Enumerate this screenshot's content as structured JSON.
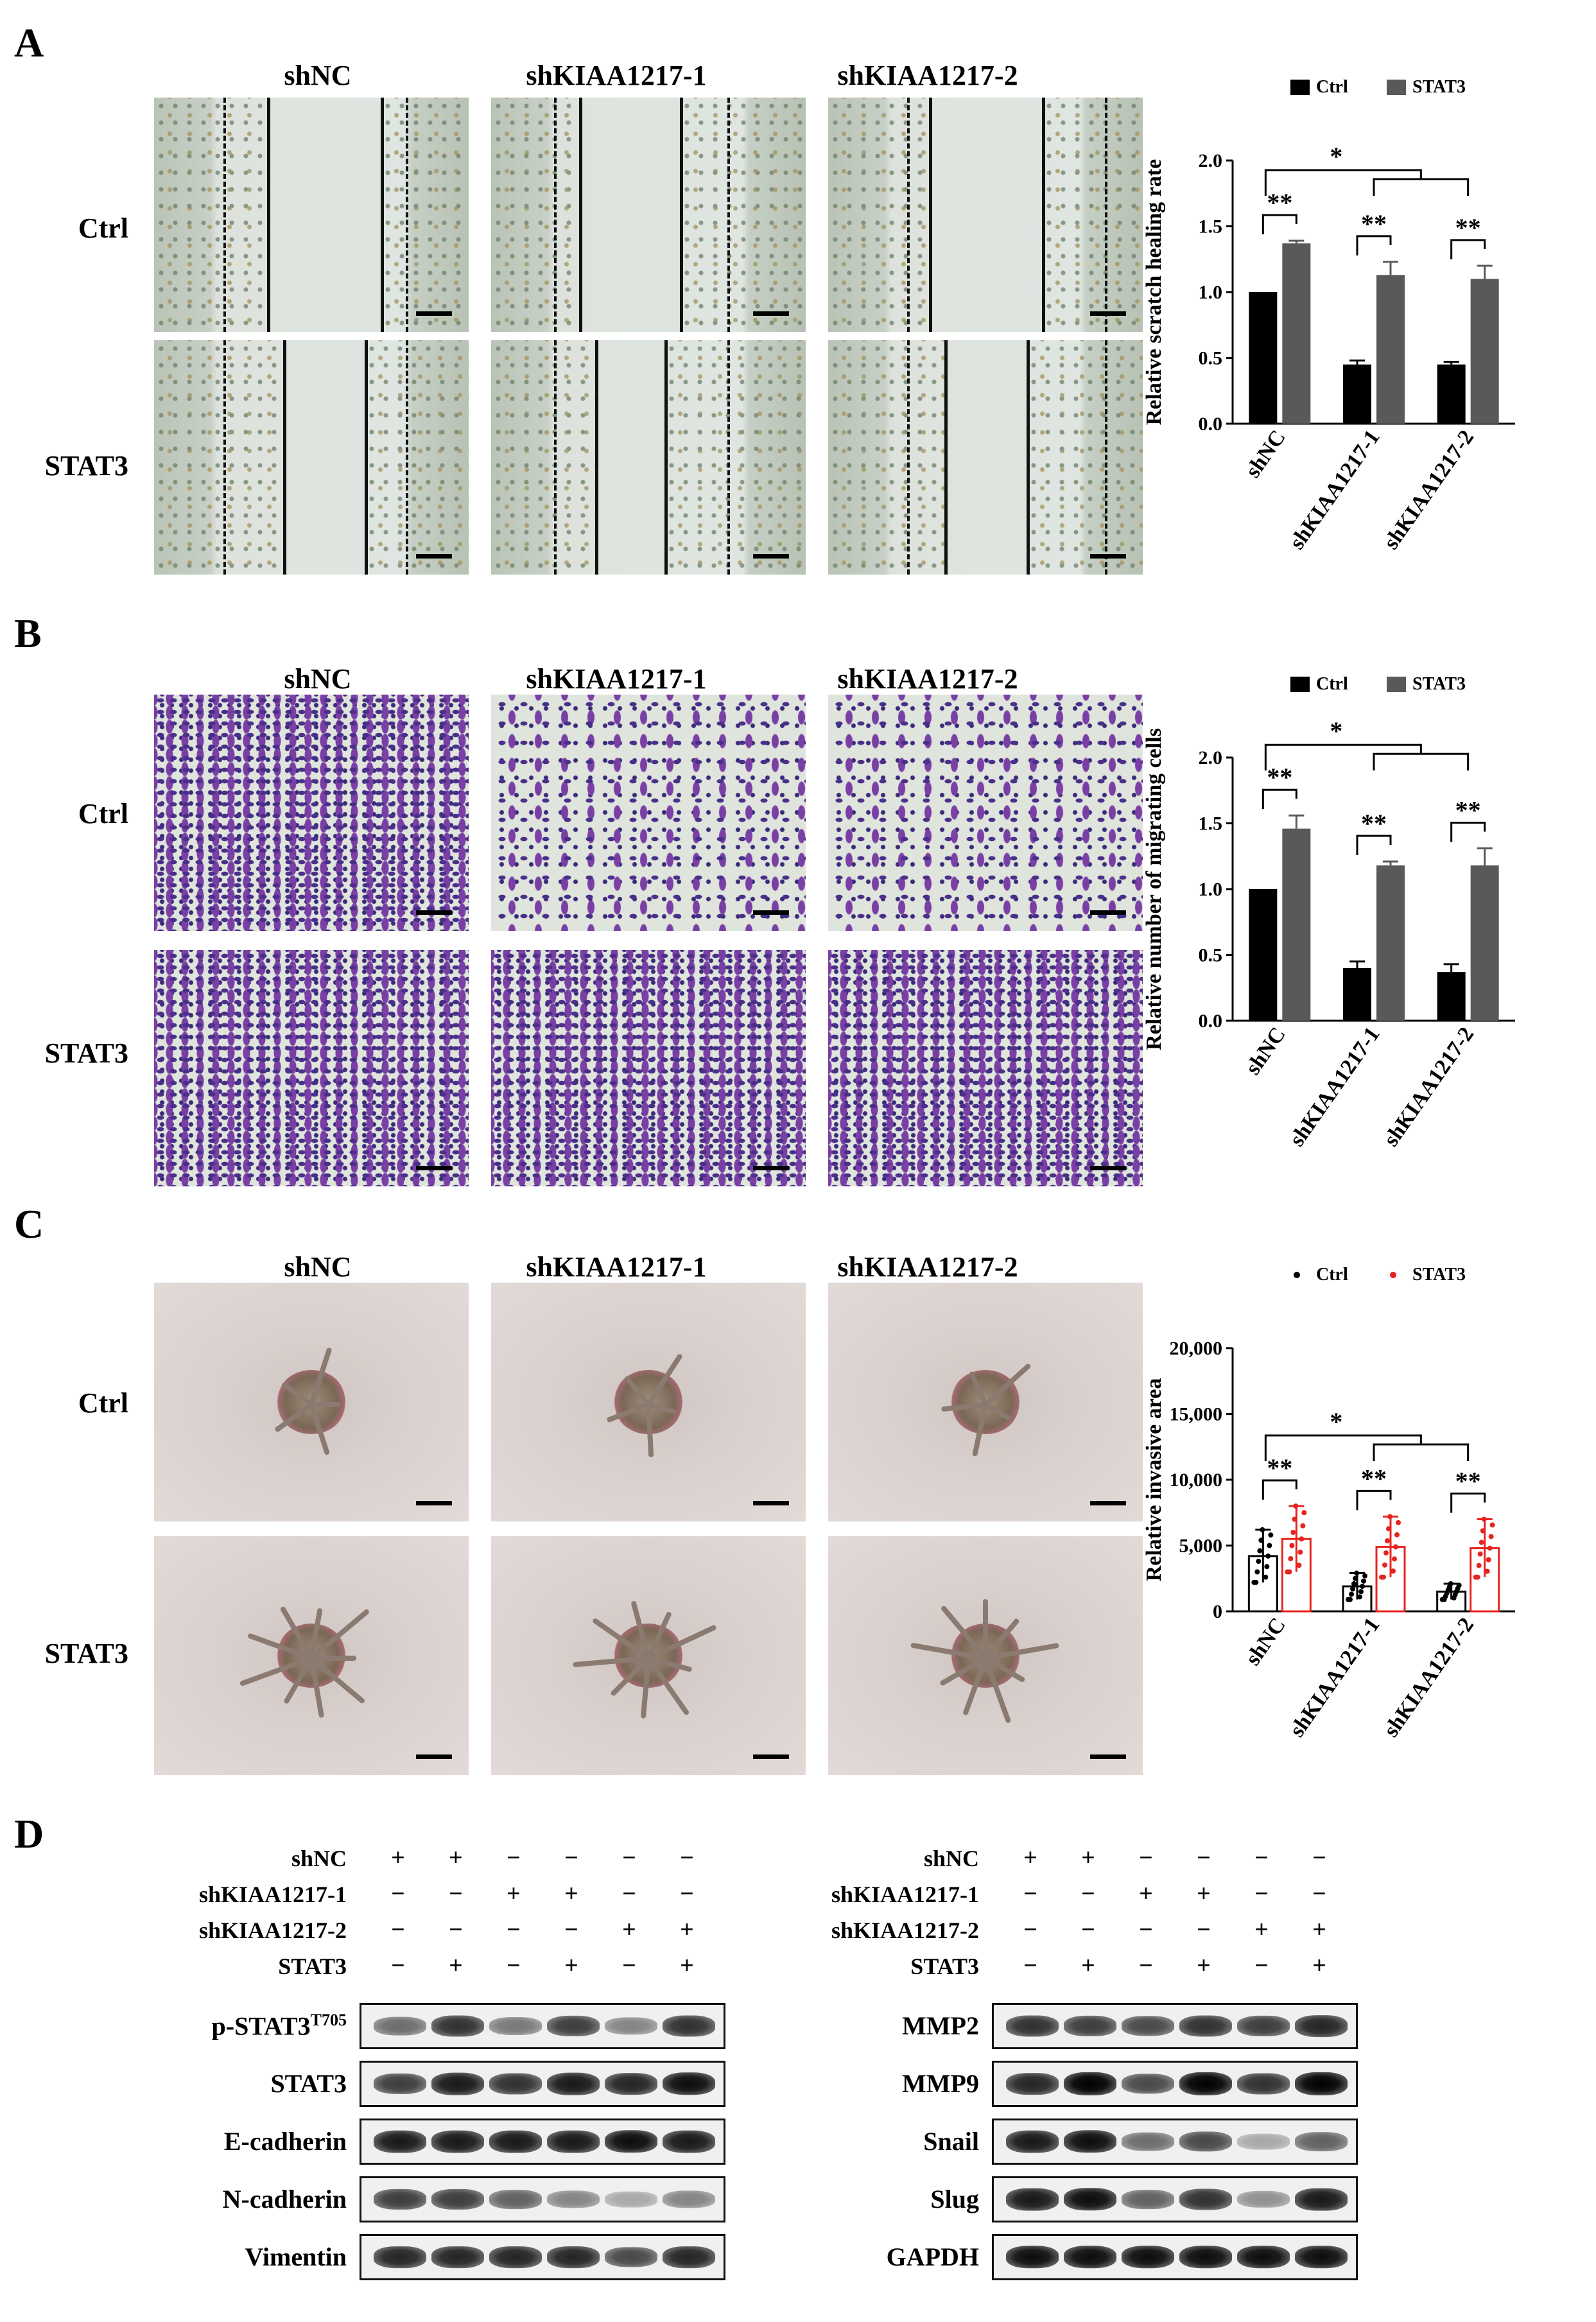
{
  "panels": {
    "A": {
      "label": "A",
      "columns": [
        "shNC",
        "shKIAA1217-1",
        "shKIAA1217-2"
      ],
      "rows": [
        "Ctrl",
        "STAT3"
      ]
    },
    "B": {
      "label": "B",
      "columns": [
        "shNC",
        "shKIAA1217-1",
        "shKIAA1217-2"
      ],
      "rows": [
        "Ctrl",
        "STAT3"
      ]
    },
    "C": {
      "label": "C",
      "columns": [
        "shNC",
        "shKIAA1217-1",
        "shKIAA1217-2"
      ],
      "rows": [
        "Ctrl",
        "STAT3"
      ]
    },
    "D": {
      "label": "D",
      "conditions": [
        "shNC",
        "shKIAA1217-1",
        "shKIAA1217-2",
        "STAT3"
      ],
      "signs": [
        [
          "+",
          "+",
          "−",
          "−",
          "−",
          "−"
        ],
        [
          "−",
          "−",
          "+",
          "+",
          "−",
          "−"
        ],
        [
          "−",
          "−",
          "−",
          "−",
          "+",
          "+"
        ],
        [
          "−",
          "+",
          "−",
          "+",
          "−",
          "+"
        ]
      ],
      "left_blots": [
        "p-STAT3",
        "STAT3",
        "E-cadherin",
        "N-cadherin",
        "Vimentin"
      ],
      "left_blot_superscript": "T705",
      "right_blots": [
        "MMP2",
        "MMP9",
        "Snail",
        "Slug",
        "GAPDH"
      ]
    }
  },
  "chart_data": [
    {
      "type": "bar",
      "panel": "A",
      "categories": [
        "shNC",
        "shKIAA1217-1",
        "shKIAA1217-2"
      ],
      "series": [
        {
          "name": "Ctrl",
          "values": [
            1.0,
            0.45,
            0.45
          ],
          "errors": [
            0.0,
            0.03,
            0.02
          ],
          "color": "#000000"
        },
        {
          "name": "STAT3",
          "values": [
            1.37,
            1.13,
            1.1
          ],
          "errors": [
            0.02,
            0.1,
            0.1
          ],
          "color": "#595959"
        }
      ],
      "ylabel": "Relative scratch healing rate",
      "ylim": [
        0,
        2.0
      ],
      "yticks": [
        "0.0",
        "0.5",
        "1.0",
        "1.5",
        "2.0"
      ],
      "significance": [
        "*",
        "**",
        "**",
        "**"
      ],
      "legend": "top"
    },
    {
      "type": "bar",
      "panel": "B",
      "categories": [
        "shNC",
        "shKIAA1217-1",
        "shKIAA1217-2"
      ],
      "series": [
        {
          "name": "Ctrl",
          "values": [
            1.0,
            0.4,
            0.37
          ],
          "errors": [
            0.0,
            0.05,
            0.06
          ],
          "color": "#000000"
        },
        {
          "name": "STAT3",
          "values": [
            1.46,
            1.18,
            1.18
          ],
          "errors": [
            0.1,
            0.03,
            0.13
          ],
          "color": "#595959"
        }
      ],
      "ylabel": "Relative number of migrating cells",
      "ylim": [
        0,
        2.0
      ],
      "yticks": [
        "0.0",
        "0.5",
        "1.0",
        "1.5",
        "2.0"
      ],
      "significance": [
        "*",
        "**",
        "**",
        "**"
      ],
      "legend": "top"
    },
    {
      "type": "bar",
      "panel": "C",
      "categories": [
        "shNC",
        "shKIAA1217-1",
        "shKIAA1217-2"
      ],
      "series": [
        {
          "name": "Ctrl",
          "values": [
            4200,
            1900,
            1500
          ],
          "errors": [
            2000,
            1000,
            600
          ],
          "color": "#000000"
        },
        {
          "name": "STAT3",
          "values": [
            5500,
            4900,
            4800
          ],
          "errors": [
            2500,
            2300,
            2200
          ],
          "color": "#e8231f"
        }
      ],
      "ylabel": "Relative invasive area",
      "ylim": [
        0,
        20000
      ],
      "yticks": [
        "0",
        "5,000",
        "10,000",
        "15,000",
        "20,000"
      ],
      "significance": [
        "*",
        "**",
        "**",
        "**"
      ],
      "legend": "top"
    }
  ]
}
